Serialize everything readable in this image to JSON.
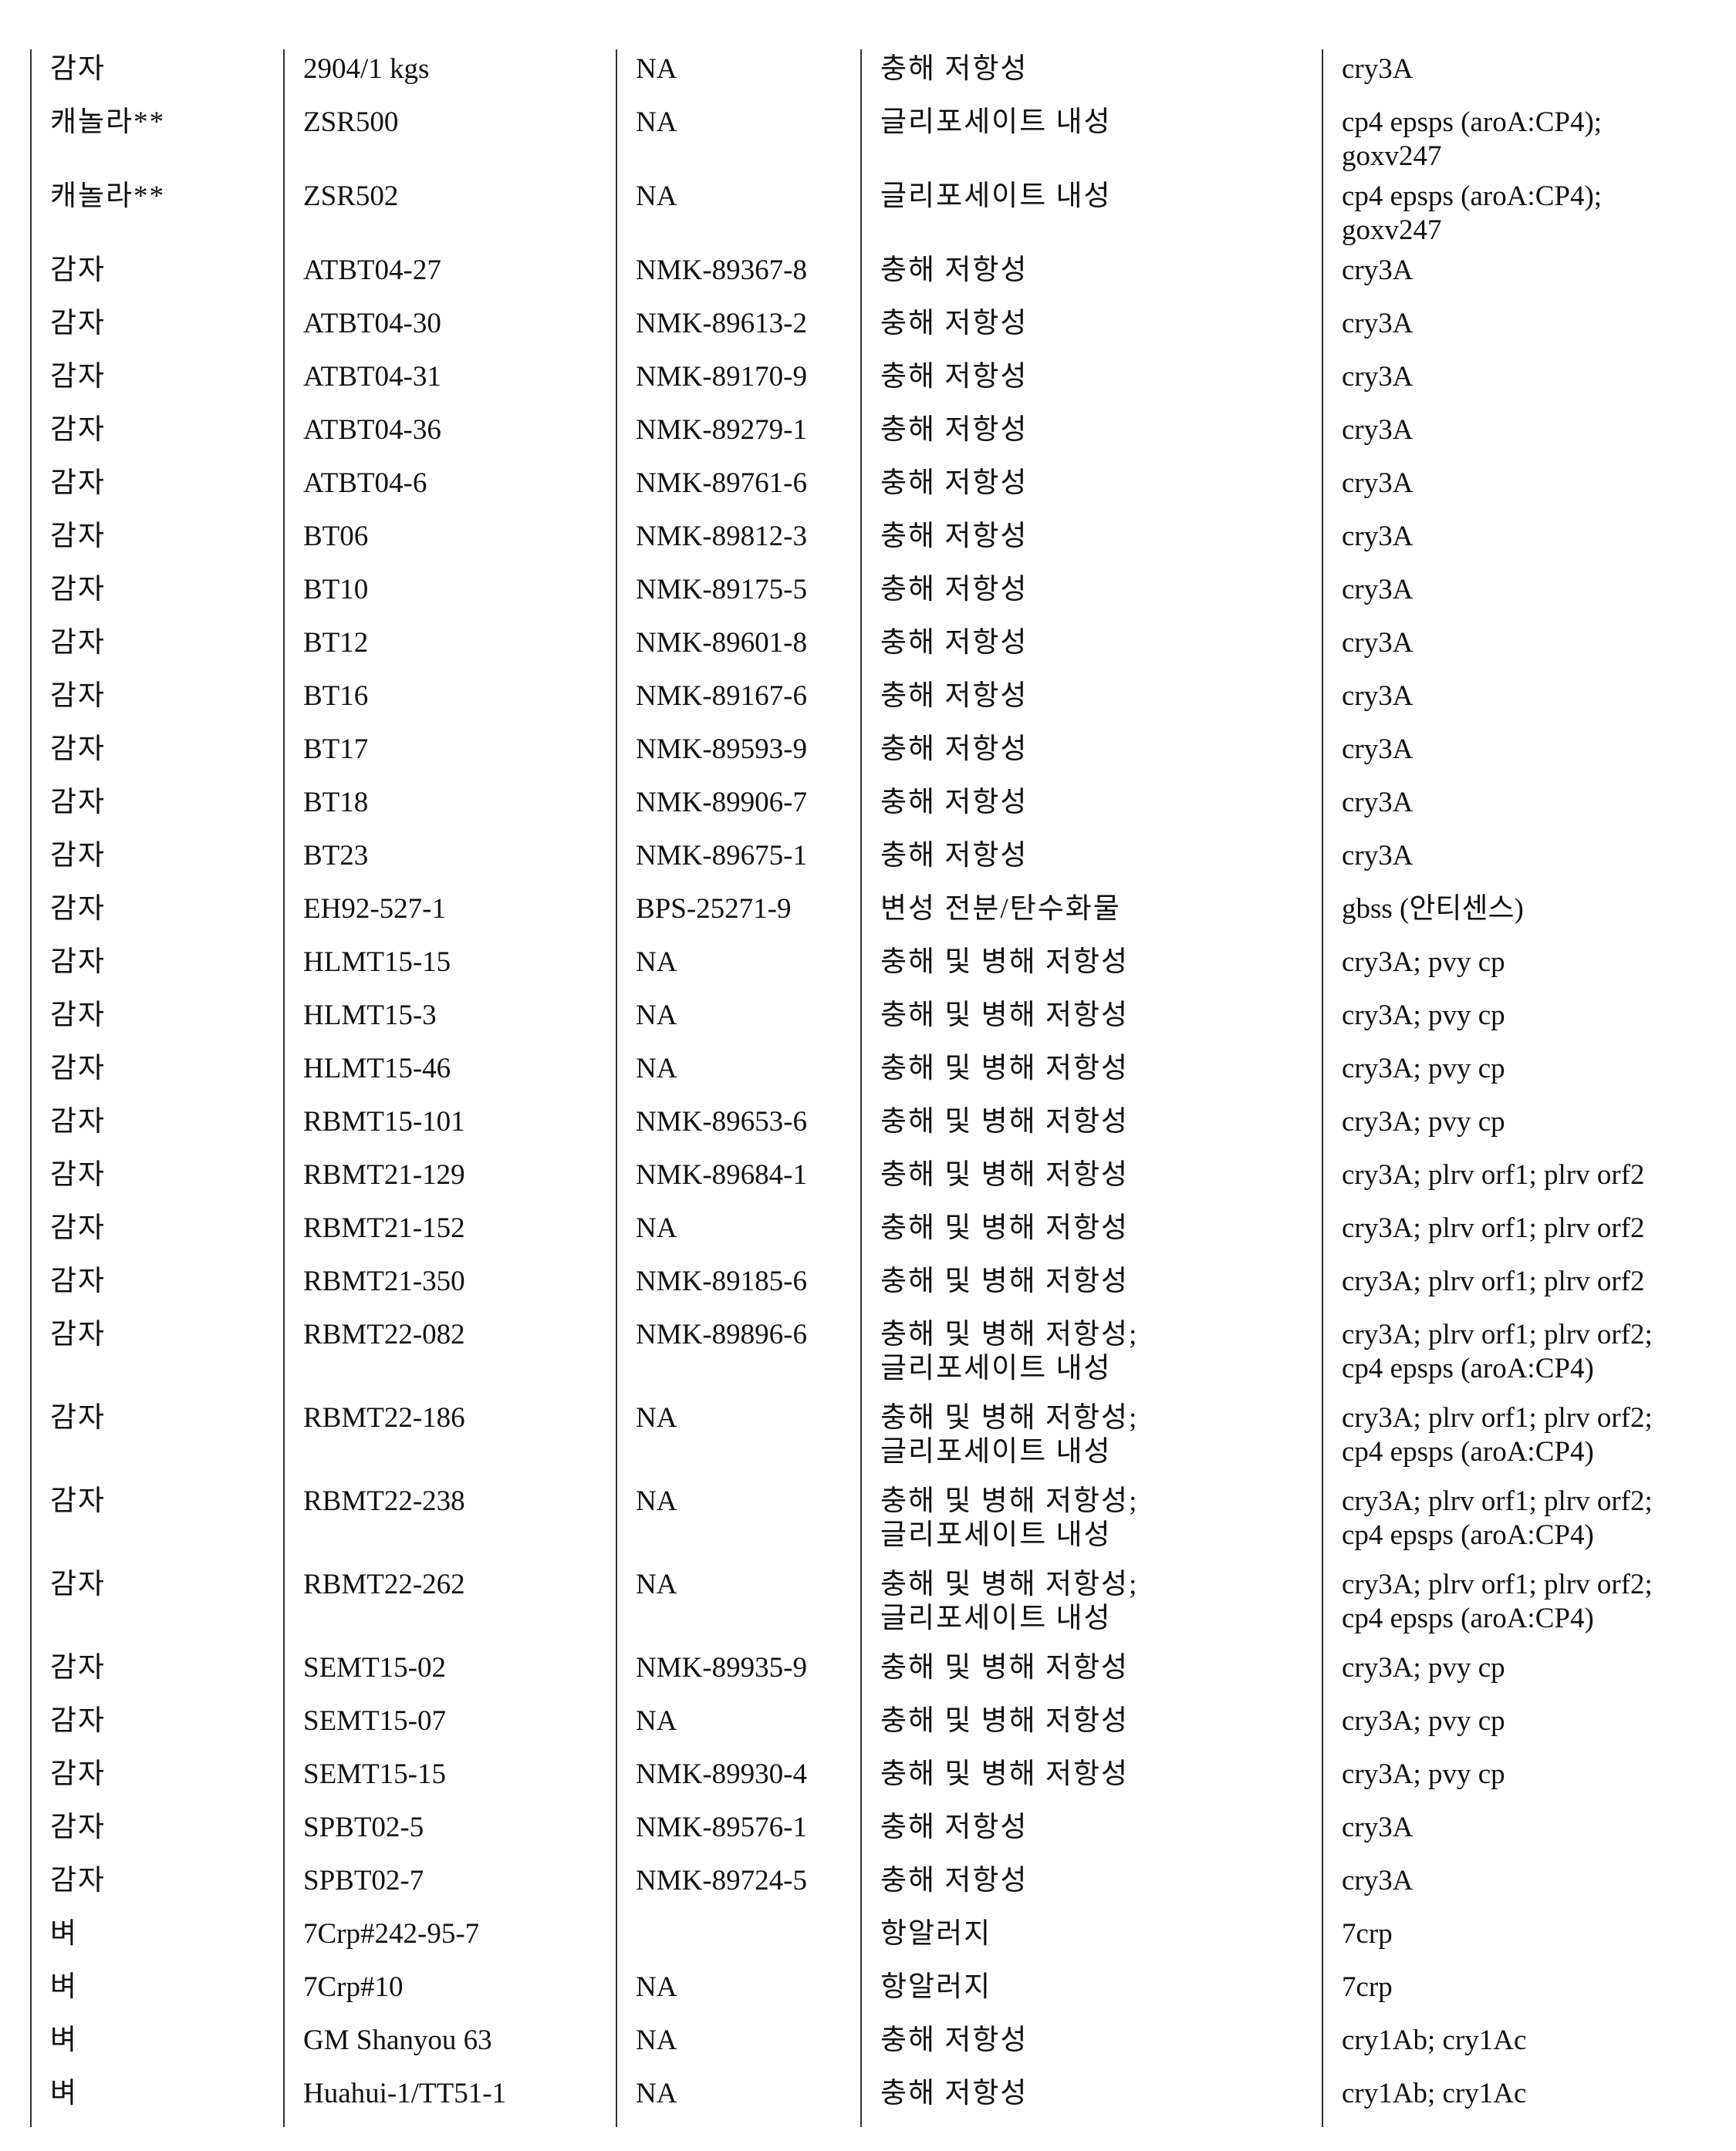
{
  "table": {
    "rows": [
      {
        "crop": "감자",
        "event": "2904/1 kgs",
        "id": "NA",
        "trait": "충해 저항성",
        "genes": "cry3A"
      },
      {
        "crop": "캐놀라**",
        "event": "ZSR500",
        "id": "NA",
        "trait": "글리포세이트 내성",
        "genes": "cp4 epsps (aroA:CP4);\ngoxv247"
      },
      {
        "crop": "캐놀라**",
        "event": "ZSR502",
        "id": "NA",
        "trait": "글리포세이트 내성",
        "genes": "cp4 epsps (aroA:CP4);\ngoxv247"
      },
      {
        "crop": "감자",
        "event": "ATBT04-27",
        "id": "NMK-89367-8",
        "trait": "충해 저항성",
        "genes": "cry3A"
      },
      {
        "crop": "감자",
        "event": "ATBT04-30",
        "id": "NMK-89613-2",
        "trait": "충해 저항성",
        "genes": "cry3A"
      },
      {
        "crop": "감자",
        "event": "ATBT04-31",
        "id": "NMK-89170-9",
        "trait": "충해 저항성",
        "genes": "cry3A"
      },
      {
        "crop": "감자",
        "event": "ATBT04-36",
        "id": "NMK-89279-1",
        "trait": "충해 저항성",
        "genes": "cry3A"
      },
      {
        "crop": "감자",
        "event": "ATBT04-6",
        "id": "NMK-89761-6",
        "trait": "충해 저항성",
        "genes": "cry3A"
      },
      {
        "crop": "감자",
        "event": "BT06",
        "id": "NMK-89812-3",
        "trait": "충해 저항성",
        "genes": "cry3A"
      },
      {
        "crop": "감자",
        "event": "BT10",
        "id": "NMK-89175-5",
        "trait": "충해 저항성",
        "genes": "cry3A"
      },
      {
        "crop": "감자",
        "event": "BT12",
        "id": "NMK-89601-8",
        "trait": "충해 저항성",
        "genes": "cry3A"
      },
      {
        "crop": "감자",
        "event": "BT16",
        "id": "NMK-89167-6",
        "trait": "충해 저항성",
        "genes": "cry3A"
      },
      {
        "crop": "감자",
        "event": "BT17",
        "id": "NMK-89593-9",
        "trait": "충해 저항성",
        "genes": "cry3A"
      },
      {
        "crop": "감자",
        "event": "BT18",
        "id": "NMK-89906-7",
        "trait": "충해 저항성",
        "genes": "cry3A"
      },
      {
        "crop": "감자",
        "event": "BT23",
        "id": "NMK-89675-1",
        "trait": "충해 저항성",
        "genes": "cry3A"
      },
      {
        "crop": "감자",
        "event": "EH92-527-1",
        "id": "BPS-25271-9",
        "trait": "변성 전분/탄수화물",
        "genes": "gbss (안티센스)"
      },
      {
        "crop": "감자",
        "event": "HLMT15-15",
        "id": "NA",
        "trait": "충해 및 병해 저항성",
        "genes": "cry3A; pvy cp"
      },
      {
        "crop": "감자",
        "event": "HLMT15-3",
        "id": "NA",
        "trait": "충해 및 병해 저항성",
        "genes": "cry3A; pvy cp"
      },
      {
        "crop": "감자",
        "event": "HLMT15-46",
        "id": "NA",
        "trait": "충해 및 병해 저항성",
        "genes": "cry3A; pvy cp"
      },
      {
        "crop": "감자",
        "event": "RBMT15-101",
        "id": "NMK-89653-6",
        "trait": "충해 및 병해 저항성",
        "genes": "cry3A; pvy cp"
      },
      {
        "crop": "감자",
        "event": "RBMT21-129",
        "id": "NMK-89684-1",
        "trait": "충해 및 병해 저항성",
        "genes": "cry3A; plrv orf1; plrv orf2"
      },
      {
        "crop": "감자",
        "event": "RBMT21-152",
        "id": "NA",
        "trait": "충해 및 병해 저항성",
        "genes": "cry3A; plrv orf1; plrv orf2"
      },
      {
        "crop": "감자",
        "event": "RBMT21-350",
        "id": "NMK-89185-6",
        "trait": "충해 및 병해 저항성",
        "genes": "cry3A; plrv orf1; plrv orf2"
      },
      {
        "crop": "감자",
        "event": "RBMT22-082",
        "id": "NMK-89896-6",
        "trait": "충해 및 병해 저항성;\n글리포세이트 내성",
        "genes": "cry3A; plrv orf1; plrv orf2;\ncp4 epsps (aroA:CP4)"
      },
      {
        "crop": "감자",
        "event": "RBMT22-186",
        "id": "NA",
        "trait": "충해 및 병해 저항성;\n글리포세이트 내성",
        "genes": "cry3A; plrv orf1; plrv orf2;\ncp4 epsps (aroA:CP4)"
      },
      {
        "crop": "감자",
        "event": "RBMT22-238",
        "id": "NA",
        "trait": "충해 및 병해 저항성;\n글리포세이트 내성",
        "genes": "cry3A; plrv orf1; plrv orf2;\ncp4 epsps (aroA:CP4)"
      },
      {
        "crop": "감자",
        "event": "RBMT22-262",
        "id": "NA",
        "trait": "충해 및 병해 저항성;\n글리포세이트 내성",
        "genes": "cry3A; plrv orf1; plrv orf2;\ncp4 epsps (aroA:CP4)"
      },
      {
        "crop": "감자",
        "event": "SEMT15-02",
        "id": "NMK-89935-9",
        "trait": "충해 및 병해 저항성",
        "genes": "cry3A; pvy cp"
      },
      {
        "crop": "감자",
        "event": "SEMT15-07",
        "id": "NA",
        "trait": "충해 및 병해 저항성",
        "genes": "cry3A; pvy cp"
      },
      {
        "crop": "감자",
        "event": "SEMT15-15",
        "id": "NMK-89930-4",
        "trait": "충해 및 병해 저항성",
        "genes": "cry3A; pvy cp"
      },
      {
        "crop": "감자",
        "event": "SPBT02-5",
        "id": "NMK-89576-1",
        "trait": "충해 저항성",
        "genes": "cry3A"
      },
      {
        "crop": "감자",
        "event": "SPBT02-7",
        "id": "NMK-89724-5",
        "trait": "충해 저항성",
        "genes": "cry3A"
      },
      {
        "crop": "벼",
        "event": "7Crp#242-95-7",
        "id": "",
        "trait": "항알러지",
        "genes": "7crp"
      },
      {
        "crop": "벼",
        "event": "7Crp#10",
        "id": "NA",
        "trait": "항알러지",
        "genes": "7crp"
      },
      {
        "crop": "벼",
        "event": "GM Shanyou 63",
        "id": "NA",
        "trait": "충해 저항성",
        "genes": "cry1Ab; cry1Ac"
      },
      {
        "crop": "벼",
        "event": "Huahui-1/TT51-1",
        "id": "NA",
        "trait": "충해 저항성",
        "genes": "cry1Ab; cry1Ac"
      }
    ]
  }
}
